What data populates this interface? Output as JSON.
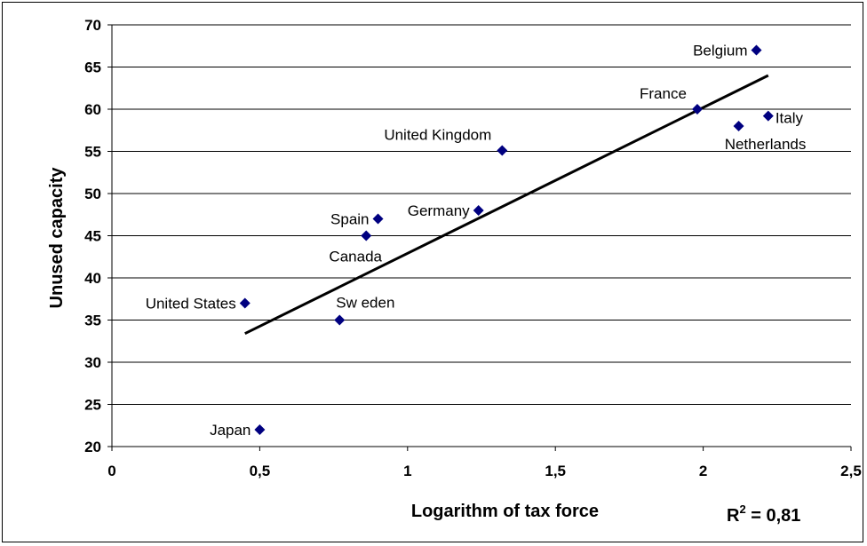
{
  "chart_data": {
    "type": "scatter",
    "title": "",
    "xlabel": "Logarithm of tax force",
    "ylabel": "Unused capacity",
    "xlim": [
      0,
      2.5
    ],
    "ylim": [
      20,
      70
    ],
    "x_ticks": [
      "0",
      "0,5",
      "1",
      "1,5",
      "2",
      "2,5"
    ],
    "y_ticks": [
      "20",
      "25",
      "30",
      "35",
      "40",
      "45",
      "50",
      "55",
      "60",
      "65",
      "70"
    ],
    "grid": "horizontal",
    "marker_color": "#000080",
    "points": [
      {
        "label": "Belgium",
        "x": 2.18,
        "y": 67.0,
        "label_pos": "left"
      },
      {
        "label": "France",
        "x": 1.98,
        "y": 60.0,
        "label_pos": "upper-left"
      },
      {
        "label": "Italy",
        "x": 2.22,
        "y": 59.2,
        "label_pos": "right"
      },
      {
        "label": "Netherlands",
        "x": 2.12,
        "y": 58.0,
        "label_pos": "below"
      },
      {
        "label": "United Kingdom",
        "x": 1.32,
        "y": 55.1,
        "label_pos": "upper-left"
      },
      {
        "label": "Germany",
        "x": 1.24,
        "y": 48.0,
        "label_pos": "left"
      },
      {
        "label": "Spain",
        "x": 0.9,
        "y": 47.0,
        "label_pos": "left"
      },
      {
        "label": "Canada",
        "x": 0.86,
        "y": 45.0,
        "label_pos": "below"
      },
      {
        "label": "United States",
        "x": 0.45,
        "y": 37.0,
        "label_pos": "left"
      },
      {
        "label": "Sw eden",
        "x": 0.77,
        "y": 35.0,
        "label_pos": "above"
      },
      {
        "label": "Japan",
        "x": 0.5,
        "y": 22.0,
        "label_pos": "left"
      }
    ],
    "trendline": {
      "x": [
        0.45,
        2.22
      ],
      "y": [
        33.4,
        64.0
      ],
      "color": "#000000"
    },
    "r2_label": "R",
    "r2_sup": "2",
    "r2_value": " = 0,81"
  }
}
